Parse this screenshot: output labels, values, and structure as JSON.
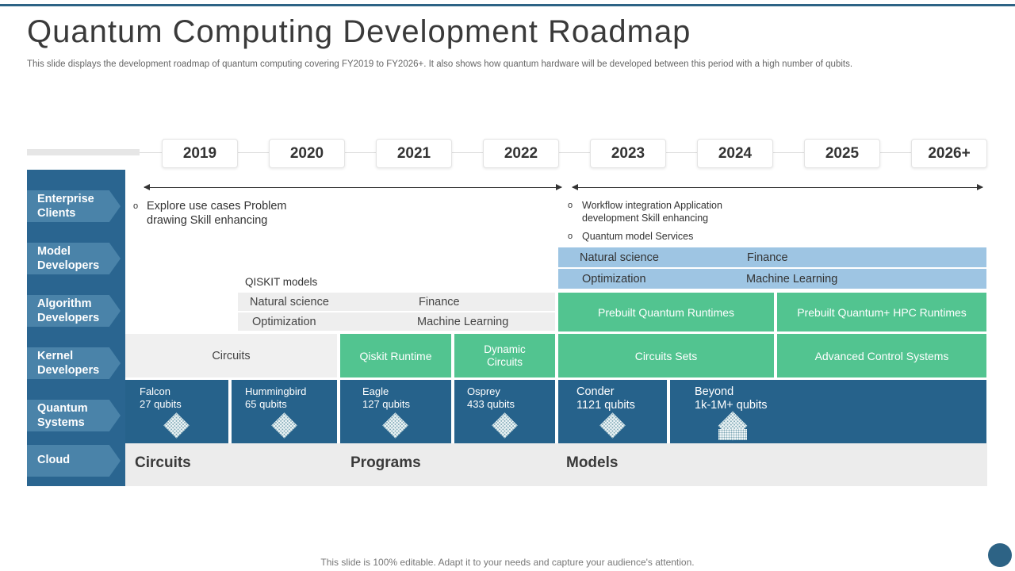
{
  "title": "Quantum Computing Development Roadmap",
  "subtitle": "This slide displays the development roadmap of quantum computing covering FY2019 to FY2026+. It also shows how quantum hardware will be developed between this period with a high number of qubits.",
  "years": [
    "2019",
    "2020",
    "2021",
    "2022",
    "2023",
    "2024",
    "2025",
    "2026+"
  ],
  "rows": {
    "enterprise": "Enterprise\nClients",
    "model": "Model\nDevelopers",
    "algorithm": "Algorithm\nDevelopers",
    "kernel": "Kernel\nDevelopers",
    "quantum": "Quantum\nSystems",
    "cloud": "Cloud"
  },
  "enterprise_left": {
    "text": "Explore use cases Problem\ndrawing Skill enhancing"
  },
  "enterprise_right": {
    "item1": "Workflow integration Application\ndevelopment  Skill enhancing",
    "item2": "Quantum model Services"
  },
  "bullet": "o",
  "model_blocks": {
    "natural_science": "Natural science",
    "finance": "Finance",
    "optimization": "Optimization",
    "machine_learning": "Machine Learning"
  },
  "algorithm_left": {
    "heading": "QISKIT models",
    "natural_science": "Natural science",
    "finance": "Finance",
    "optimization": "Optimization",
    "machine_learning": "Machine Learning"
  },
  "algorithm_right": {
    "prebuilt_runtimes": "Prebuilt Quantum Runtimes",
    "prebuilt_hpc": "Prebuilt Quantum+ HPC Runtimes"
  },
  "kernel": {
    "circuits": "Circuits",
    "qiskit_runtime": "Qiskit Runtime",
    "dynamic_circuits": "Dynamic\nCircuits",
    "circuit_sets": "Circuits Sets",
    "advanced_control": "Advanced Control Systems"
  },
  "systems": [
    {
      "name": "Falcon",
      "qubits": "27 qubits"
    },
    {
      "name": "Hummingbird",
      "qubits": "65 qubits"
    },
    {
      "name": "Eagle",
      "qubits": "127 qubits"
    },
    {
      "name": "Osprey",
      "qubits": "433 qubits"
    },
    {
      "name": "Conder",
      "qubits": "1121 qubits"
    },
    {
      "name": "Beyond",
      "qubits": "1k-1M+ qubits"
    }
  ],
  "cloud": {
    "circuits": "Circuits",
    "programs": "Programs",
    "models": "Models"
  },
  "footer": "This slide is 100% editable. Adapt it to your needs and capture your audience's attention.",
  "colors": {
    "navy": "#26628b",
    "steel_blue": "#4a83a9",
    "green": "#52c490",
    "light_blue": "#9ec5e3",
    "light_grey": "#f0f0f0"
  }
}
